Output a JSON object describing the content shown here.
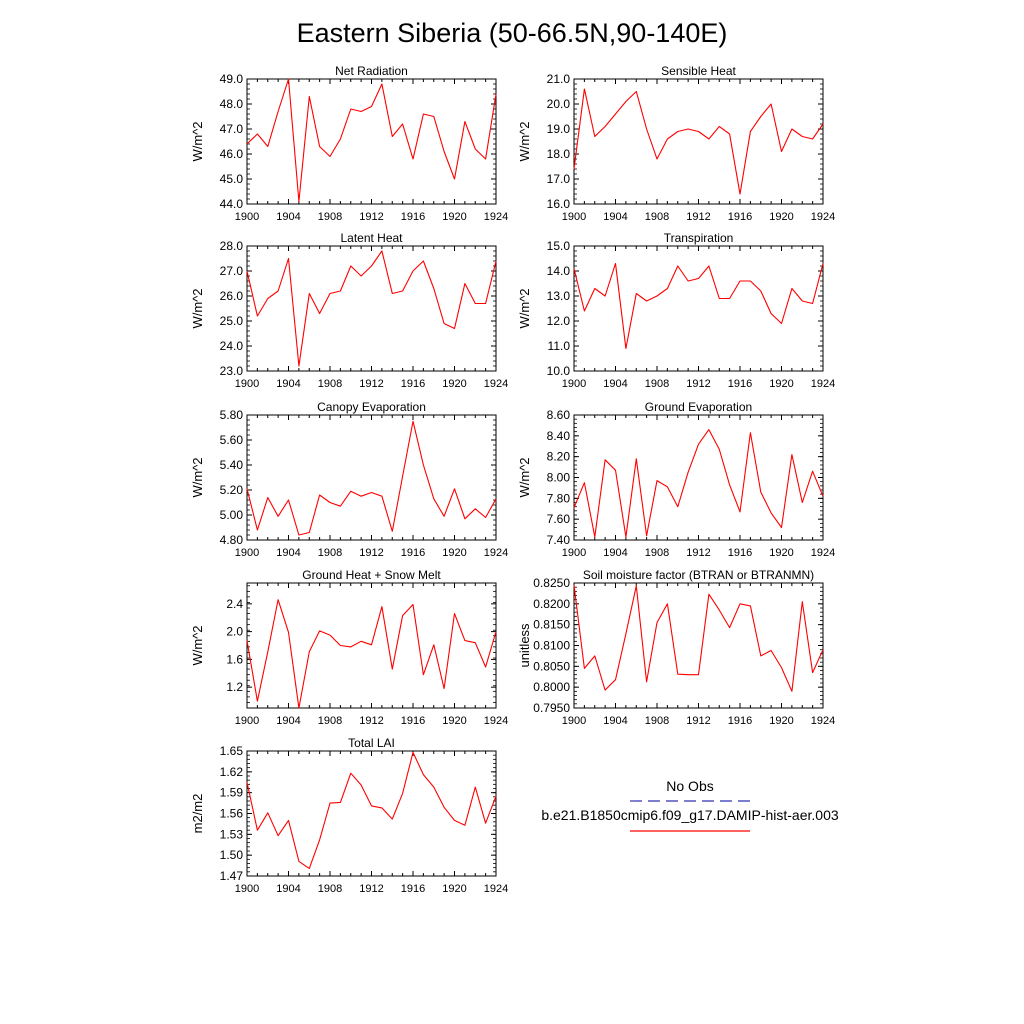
{
  "title": "Eastern Siberia (50-66.5N,90-140E)",
  "line_color": "#ff0000",
  "obs_color": "#3030b0",
  "legend": {
    "obs_label": "No Obs",
    "model_label": "b.e21.B1850cmip6.f09_g17.DAMIP-hist-aer.003"
  },
  "chart_data": [
    {
      "type": "line",
      "title": "Net Radiation",
      "ylabel": "W/m^2",
      "xlim": [
        1900,
        1924
      ],
      "ylim": [
        44.0,
        49.0
      ],
      "xticks": [
        1900,
        1904,
        1908,
        1912,
        1916,
        1920,
        1924
      ],
      "yticks": [
        44.0,
        45.0,
        46.0,
        47.0,
        48.0,
        49.0
      ],
      "ytick_labels": [
        "44.0",
        "45.0",
        "46.0",
        "47.0",
        "48.0",
        "49.0"
      ],
      "x": [
        1900,
        1901,
        1902,
        1903,
        1904,
        1905,
        1906,
        1907,
        1908,
        1909,
        1910,
        1911,
        1912,
        1913,
        1914,
        1915,
        1916,
        1917,
        1918,
        1919,
        1920,
        1921,
        1922,
        1923,
        1924
      ],
      "series": [
        {
          "name": "b.e21.B1850cmip6.f09_g17.DAMIP-hist-aer.003",
          "values": [
            46.4,
            46.8,
            46.3,
            47.7,
            49.0,
            44.1,
            48.3,
            46.3,
            45.9,
            46.6,
            47.8,
            47.7,
            47.9,
            48.8,
            46.7,
            47.2,
            45.8,
            47.6,
            47.5,
            46.1,
            45.0,
            47.3,
            46.2,
            45.8,
            48.4
          ]
        }
      ]
    },
    {
      "type": "line",
      "title": "Sensible Heat",
      "ylabel": "W/m^2",
      "xlim": [
        1900,
        1924
      ],
      "ylim": [
        16.0,
        21.0
      ],
      "xticks": [
        1900,
        1904,
        1908,
        1912,
        1916,
        1920,
        1924
      ],
      "yticks": [
        16.0,
        17.0,
        18.0,
        19.0,
        20.0,
        21.0
      ],
      "ytick_labels": [
        "16.0",
        "17.0",
        "18.0",
        "19.0",
        "20.0",
        "21.0"
      ],
      "x": [
        1900,
        1901,
        1902,
        1903,
        1904,
        1905,
        1906,
        1907,
        1908,
        1909,
        1910,
        1911,
        1912,
        1913,
        1914,
        1915,
        1916,
        1917,
        1918,
        1919,
        1920,
        1921,
        1922,
        1923,
        1924
      ],
      "series": [
        {
          "name": "b.e21.B1850cmip6.f09_g17.DAMIP-hist-aer.003",
          "values": [
            17.4,
            20.6,
            18.7,
            19.1,
            19.6,
            20.1,
            20.5,
            19.0,
            17.8,
            18.6,
            18.9,
            19.0,
            18.9,
            18.6,
            19.1,
            18.8,
            16.4,
            18.9,
            19.5,
            20.0,
            18.1,
            19.0,
            18.7,
            18.6,
            19.2
          ]
        }
      ]
    },
    {
      "type": "line",
      "title": "Latent Heat",
      "ylabel": "W/m^2",
      "xlim": [
        1900,
        1924
      ],
      "ylim": [
        23.0,
        28.0
      ],
      "xticks": [
        1900,
        1904,
        1908,
        1912,
        1916,
        1920,
        1924
      ],
      "yticks": [
        23.0,
        24.0,
        25.0,
        26.0,
        27.0,
        28.0
      ],
      "ytick_labels": [
        "23.0",
        "24.0",
        "25.0",
        "26.0",
        "27.0",
        "28.0"
      ],
      "x": [
        1900,
        1901,
        1902,
        1903,
        1904,
        1905,
        1906,
        1907,
        1908,
        1909,
        1910,
        1911,
        1912,
        1913,
        1914,
        1915,
        1916,
        1917,
        1918,
        1919,
        1920,
        1921,
        1922,
        1923,
        1924
      ],
      "series": [
        {
          "name": "b.e21.B1850cmip6.f09_g17.DAMIP-hist-aer.003",
          "values": [
            27.0,
            25.2,
            25.9,
            26.2,
            27.5,
            23.2,
            26.1,
            25.3,
            26.1,
            26.2,
            27.2,
            26.8,
            27.2,
            27.8,
            26.1,
            26.2,
            27.0,
            27.4,
            26.3,
            24.9,
            24.7,
            26.5,
            25.7,
            25.7,
            27.4
          ]
        }
      ]
    },
    {
      "type": "line",
      "title": "Transpiration",
      "ylabel": "W/m^2",
      "xlim": [
        1900,
        1924
      ],
      "ylim": [
        10.0,
        15.0
      ],
      "xticks": [
        1900,
        1904,
        1908,
        1912,
        1916,
        1920,
        1924
      ],
      "yticks": [
        10.0,
        11.0,
        12.0,
        13.0,
        14.0,
        15.0
      ],
      "ytick_labels": [
        "10.0",
        "11.0",
        "12.0",
        "13.0",
        "14.0",
        "15.0"
      ],
      "x": [
        1900,
        1901,
        1902,
        1903,
        1904,
        1905,
        1906,
        1907,
        1908,
        1909,
        1910,
        1911,
        1912,
        1913,
        1914,
        1915,
        1916,
        1917,
        1918,
        1919,
        1920,
        1921,
        1922,
        1923,
        1924
      ],
      "series": [
        {
          "name": "b.e21.B1850cmip6.f09_g17.DAMIP-hist-aer.003",
          "values": [
            14.1,
            12.4,
            13.3,
            13.0,
            14.3,
            10.9,
            13.1,
            12.8,
            13.0,
            13.3,
            14.2,
            13.6,
            13.7,
            14.2,
            12.9,
            12.9,
            13.6,
            13.6,
            13.2,
            12.3,
            11.9,
            13.3,
            12.8,
            12.7,
            14.3
          ]
        }
      ]
    },
    {
      "type": "line",
      "title": "Canopy Evaporation",
      "ylabel": "W/m^2",
      "xlim": [
        1900,
        1924
      ],
      "ylim": [
        4.8,
        5.8
      ],
      "xticks": [
        1900,
        1904,
        1908,
        1912,
        1916,
        1920,
        1924
      ],
      "yticks": [
        4.8,
        5.0,
        5.2,
        5.4,
        5.6,
        5.8
      ],
      "ytick_labels": [
        "4.80",
        "5.00",
        "5.20",
        "5.40",
        "5.60",
        "5.80"
      ],
      "x": [
        1900,
        1901,
        1902,
        1903,
        1904,
        1905,
        1906,
        1907,
        1908,
        1909,
        1910,
        1911,
        1912,
        1913,
        1914,
        1915,
        1916,
        1917,
        1918,
        1919,
        1920,
        1921,
        1922,
        1923,
        1924
      ],
      "series": [
        {
          "name": "b.e21.B1850cmip6.f09_g17.DAMIP-hist-aer.003",
          "values": [
            5.21,
            4.88,
            5.14,
            4.99,
            5.12,
            4.84,
            4.86,
            5.16,
            5.1,
            5.07,
            5.19,
            5.15,
            5.18,
            5.15,
            4.87,
            5.31,
            5.75,
            5.4,
            5.13,
            4.99,
            5.21,
            4.97,
            5.05,
            4.98,
            5.13
          ]
        }
      ]
    },
    {
      "type": "line",
      "title": "Ground Evaporation",
      "ylabel": "W/m^2",
      "xlim": [
        1900,
        1924
      ],
      "ylim": [
        7.4,
        8.6
      ],
      "xticks": [
        1900,
        1904,
        1908,
        1912,
        1916,
        1920,
        1924
      ],
      "yticks": [
        7.4,
        7.6,
        7.8,
        8.0,
        8.2,
        8.4,
        8.6
      ],
      "ytick_labels": [
        "7.40",
        "7.60",
        "7.80",
        "8.00",
        "8.20",
        "8.40",
        "8.60"
      ],
      "x": [
        1900,
        1901,
        1902,
        1903,
        1904,
        1905,
        1906,
        1907,
        1908,
        1909,
        1910,
        1911,
        1912,
        1913,
        1914,
        1915,
        1916,
        1917,
        1918,
        1919,
        1920,
        1921,
        1922,
        1923,
        1924
      ],
      "series": [
        {
          "name": "b.e21.B1850cmip6.f09_g17.DAMIP-hist-aer.003",
          "values": [
            7.71,
            7.95,
            7.43,
            8.17,
            8.07,
            7.43,
            8.18,
            7.44,
            7.97,
            7.91,
            7.72,
            8.05,
            8.32,
            8.46,
            8.27,
            7.93,
            7.67,
            8.43,
            7.86,
            7.66,
            7.52,
            8.22,
            7.76,
            8.06,
            7.82
          ]
        }
      ]
    },
    {
      "type": "line",
      "title": "Ground Heat + Snow Melt",
      "ylabel": "W/m^2",
      "xlim": [
        1900,
        1924
      ],
      "ylim": [
        0.9,
        2.7
      ],
      "xticks": [
        1900,
        1904,
        1908,
        1912,
        1916,
        1920,
        1924
      ],
      "yticks": [
        1.2,
        1.6,
        2.0,
        2.4
      ],
      "ytick_labels": [
        "1.2",
        "1.6",
        "2.0",
        "2.4"
      ],
      "x": [
        1900,
        1901,
        1902,
        1903,
        1904,
        1905,
        1906,
        1907,
        1908,
        1909,
        1910,
        1911,
        1912,
        1913,
        1914,
        1915,
        1916,
        1917,
        1918,
        1919,
        1920,
        1921,
        1922,
        1923,
        1924
      ],
      "series": [
        {
          "name": "b.e21.B1850cmip6.f09_g17.DAMIP-hist-aer.003",
          "values": [
            1.87,
            1.0,
            1.71,
            2.46,
            1.99,
            0.9,
            1.71,
            2.01,
            1.95,
            1.8,
            1.78,
            1.86,
            1.81,
            2.36,
            1.46,
            2.23,
            2.39,
            1.38,
            1.81,
            1.18,
            2.26,
            1.87,
            1.84,
            1.49,
            2.0
          ]
        }
      ]
    },
    {
      "type": "line",
      "title": "Soil moisture factor (BTRAN or BTRANMN)",
      "ylabel": "unitless",
      "xlim": [
        1900,
        1924
      ],
      "ylim": [
        0.795,
        0.825
      ],
      "xticks": [
        1900,
        1904,
        1908,
        1912,
        1916,
        1920,
        1924
      ],
      "yticks": [
        0.795,
        0.8,
        0.805,
        0.81,
        0.815,
        0.82,
        0.825
      ],
      "ytick_labels": [
        "0.7950",
        "0.8000",
        "0.8050",
        "0.8100",
        "0.8150",
        "0.8200",
        "0.8250"
      ],
      "x": [
        1900,
        1901,
        1902,
        1903,
        1904,
        1905,
        1906,
        1907,
        1908,
        1909,
        1910,
        1911,
        1912,
        1913,
        1914,
        1915,
        1916,
        1917,
        1918,
        1919,
        1920,
        1921,
        1922,
        1923,
        1924
      ],
      "series": [
        {
          "name": "b.e21.B1850cmip6.f09_g17.DAMIP-hist-aer.003",
          "values": [
            0.8245,
            0.8045,
            0.8075,
            0.7993,
            0.8018,
            0.8128,
            0.8243,
            0.8013,
            0.8155,
            0.82,
            0.8031,
            0.803,
            0.803,
            0.8223,
            0.8185,
            0.8143,
            0.82,
            0.8195,
            0.8075,
            0.8088,
            0.8047,
            0.799,
            0.8205,
            0.8035,
            0.809
          ]
        }
      ]
    },
    {
      "type": "line",
      "title": "Total LAI",
      "ylabel": "m2/m2",
      "xlim": [
        1900,
        1924
      ],
      "ylim": [
        1.47,
        1.65
      ],
      "xticks": [
        1900,
        1904,
        1908,
        1912,
        1916,
        1920,
        1924
      ],
      "yticks": [
        1.47,
        1.5,
        1.53,
        1.56,
        1.59,
        1.62,
        1.65
      ],
      "ytick_labels": [
        "1.47",
        "1.50",
        "1.53",
        "1.56",
        "1.59",
        "1.62",
        "1.65"
      ],
      "x": [
        1900,
        1901,
        1902,
        1903,
        1904,
        1905,
        1906,
        1907,
        1908,
        1909,
        1910,
        1911,
        1912,
        1913,
        1914,
        1915,
        1916,
        1917,
        1918,
        1919,
        1920,
        1921,
        1922,
        1923,
        1924
      ],
      "series": [
        {
          "name": "b.e21.B1850cmip6.f09_g17.DAMIP-hist-aer.003",
          "values": [
            1.605,
            1.536,
            1.561,
            1.528,
            1.55,
            1.491,
            1.481,
            1.522,
            1.575,
            1.576,
            1.618,
            1.601,
            1.571,
            1.568,
            1.552,
            1.589,
            1.648,
            1.616,
            1.598,
            1.569,
            1.55,
            1.543,
            1.598,
            1.546,
            1.585
          ]
        }
      ]
    }
  ]
}
